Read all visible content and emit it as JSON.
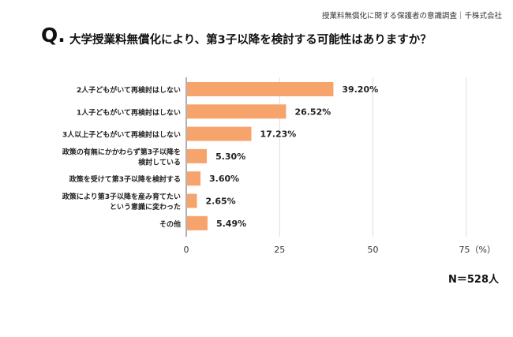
{
  "header": {
    "source": "授業料無償化に関する保護者の意識調査｜千株式会社",
    "q_mark": "Q.",
    "question": "大学授業料無償化により、第3子以降を検討する可能性はありますか？"
  },
  "footer": {
    "n_label": "N＝528人"
  },
  "chart_data": {
    "type": "bar",
    "orientation": "horizontal",
    "title": "大学授業料無償化により、第3子以降を検討する可能性はありますか？",
    "categories": [
      [
        "2人子どもがいて再検討はしない"
      ],
      [
        "1人子どもがいて再検討はしない"
      ],
      [
        "3人以上子どもがいて再検討はしない"
      ],
      [
        "政策の有無にかかわらず第3子以降を",
        "検討している"
      ],
      [
        "政策を受けて第3子以降を検討する"
      ],
      [
        "政策により第3子以降を産み育てたい",
        "という意識に変わった"
      ],
      [
        "その他"
      ]
    ],
    "values": [
      39.2,
      26.52,
      17.23,
      5.3,
      3.6,
      2.65,
      5.49
    ],
    "value_labels": [
      "39.20%",
      "26.52%",
      "17.23%",
      "5.30%",
      "3.60%",
      "2.65%",
      "5.49%"
    ],
    "xlim": [
      0,
      85
    ],
    "xticks": [
      0,
      25,
      50,
      75
    ],
    "xtick_labels": [
      "0",
      "25",
      "50",
      "75（%）"
    ],
    "grid": true,
    "bar_color": "#f7a46c"
  }
}
